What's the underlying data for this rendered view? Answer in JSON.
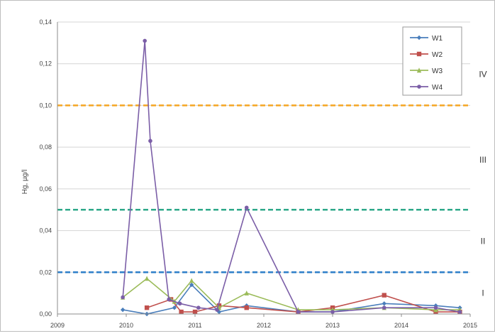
{
  "chart_data": {
    "type": "line",
    "ylabel": "Hg, µg/l",
    "xlim": [
      2009,
      2015
    ],
    "ylim": [
      0,
      0.14
    ],
    "x_ticks": [
      2009,
      2010,
      2011,
      2012,
      2013,
      2014,
      2015
    ],
    "x_tick_labels": [
      "2009",
      "2010",
      "2011",
      "2012",
      "2013",
      "2014",
      "2015"
    ],
    "y_ticks": [
      0,
      0.02,
      0.04,
      0.06,
      0.08,
      0.1,
      0.12,
      0.14
    ],
    "y_tick_labels": [
      "0,00",
      "0,02",
      "0,04",
      "0,06",
      "0,08",
      "0,10",
      "0,12",
      "0,14"
    ],
    "grid": true,
    "legend_position": "top-right",
    "series": [
      {
        "name": "W1",
        "color": "#4a7ebb",
        "marker": "diamond",
        "points": [
          [
            2009.95,
            0.002
          ],
          [
            2010.3,
            0.0
          ],
          [
            2010.7,
            0.003
          ],
          [
            2010.95,
            0.014
          ],
          [
            2011.35,
            0.001
          ],
          [
            2011.75,
            0.004
          ],
          [
            2012.5,
            0.001
          ],
          [
            2013.0,
            0.001
          ],
          [
            2013.75,
            0.005
          ],
          [
            2014.5,
            0.004
          ],
          [
            2014.85,
            0.003
          ]
        ]
      },
      {
        "name": "W2",
        "color": "#c0504d",
        "marker": "square",
        "points": [
          [
            2010.3,
            0.003
          ],
          [
            2010.65,
            0.007
          ],
          [
            2010.8,
            0.001
          ],
          [
            2011.0,
            0.001
          ],
          [
            2011.35,
            0.004
          ],
          [
            2011.75,
            0.003
          ],
          [
            2012.5,
            0.001
          ],
          [
            2013.0,
            0.003
          ],
          [
            2013.75,
            0.009
          ],
          [
            2014.5,
            0.001
          ],
          [
            2014.85,
            0.001
          ]
        ]
      },
      {
        "name": "W3",
        "color": "#9bbb59",
        "marker": "triangle",
        "points": [
          [
            2009.95,
            0.008
          ],
          [
            2010.3,
            0.017
          ],
          [
            2010.7,
            0.006
          ],
          [
            2010.95,
            0.016
          ],
          [
            2011.35,
            0.003
          ],
          [
            2011.75,
            0.01
          ],
          [
            2012.5,
            0.002
          ],
          [
            2013.0,
            0.002
          ],
          [
            2013.75,
            0.003
          ],
          [
            2014.5,
            0.002
          ],
          [
            2014.85,
            0.002
          ]
        ]
      },
      {
        "name": "W4",
        "color": "#7b5ea7",
        "marker": "cross",
        "points": [
          [
            2009.95,
            0.008
          ],
          [
            2010.27,
            0.131
          ],
          [
            2010.35,
            0.083
          ],
          [
            2010.62,
            0.007
          ],
          [
            2010.78,
            0.005
          ],
          [
            2011.05,
            0.003
          ],
          [
            2011.32,
            0.002
          ],
          [
            2011.75,
            0.051
          ],
          [
            2012.5,
            0.001
          ],
          [
            2013.0,
            0.001
          ],
          [
            2013.75,
            0.003
          ],
          [
            2014.5,
            0.003
          ],
          [
            2014.85,
            0.001
          ]
        ]
      }
    ],
    "thresholds": [
      {
        "value": 0.1,
        "color": "#f5a623"
      },
      {
        "value": 0.05,
        "color": "#2ea88a"
      },
      {
        "value": 0.02,
        "color": "#2e7fc9"
      }
    ],
    "zones": [
      {
        "label": "IV",
        "y": 0.115
      },
      {
        "label": "III",
        "y": 0.074
      },
      {
        "label": "II",
        "y": 0.035
      },
      {
        "label": "I",
        "y": 0.01
      }
    ]
  }
}
